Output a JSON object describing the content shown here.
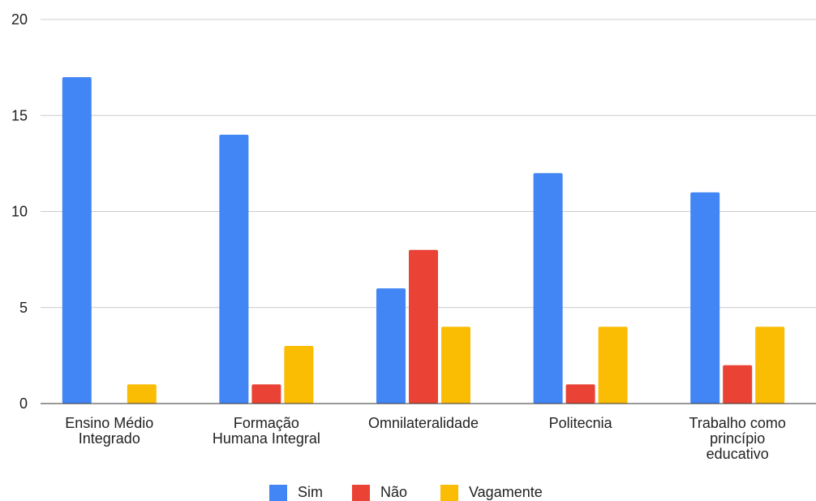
{
  "chart_data": {
    "type": "bar",
    "categories": [
      [
        "Ensino Médio",
        "Integrado"
      ],
      [
        "Formação",
        "Humana Integral"
      ],
      [
        "Omnilateralidade"
      ],
      [
        "Politecnia"
      ],
      [
        "Trabalho como",
        "princípio",
        "educativo"
      ]
    ],
    "series": [
      {
        "name": "Sim",
        "color": "#4285f4",
        "values": [
          17,
          14,
          6,
          12,
          11
        ]
      },
      {
        "name": "Não",
        "color": "#ea4335",
        "values": [
          0,
          1,
          8,
          1,
          2
        ]
      },
      {
        "name": "Vagamente",
        "color": "#fbbc04",
        "values": [
          1,
          3,
          4,
          4,
          4
        ]
      }
    ],
    "yticks": [
      "0",
      "5",
      "10",
      "15",
      "20"
    ],
    "ylim": [
      0,
      20
    ],
    "grid": true,
    "legend_position": "bottom-center"
  }
}
